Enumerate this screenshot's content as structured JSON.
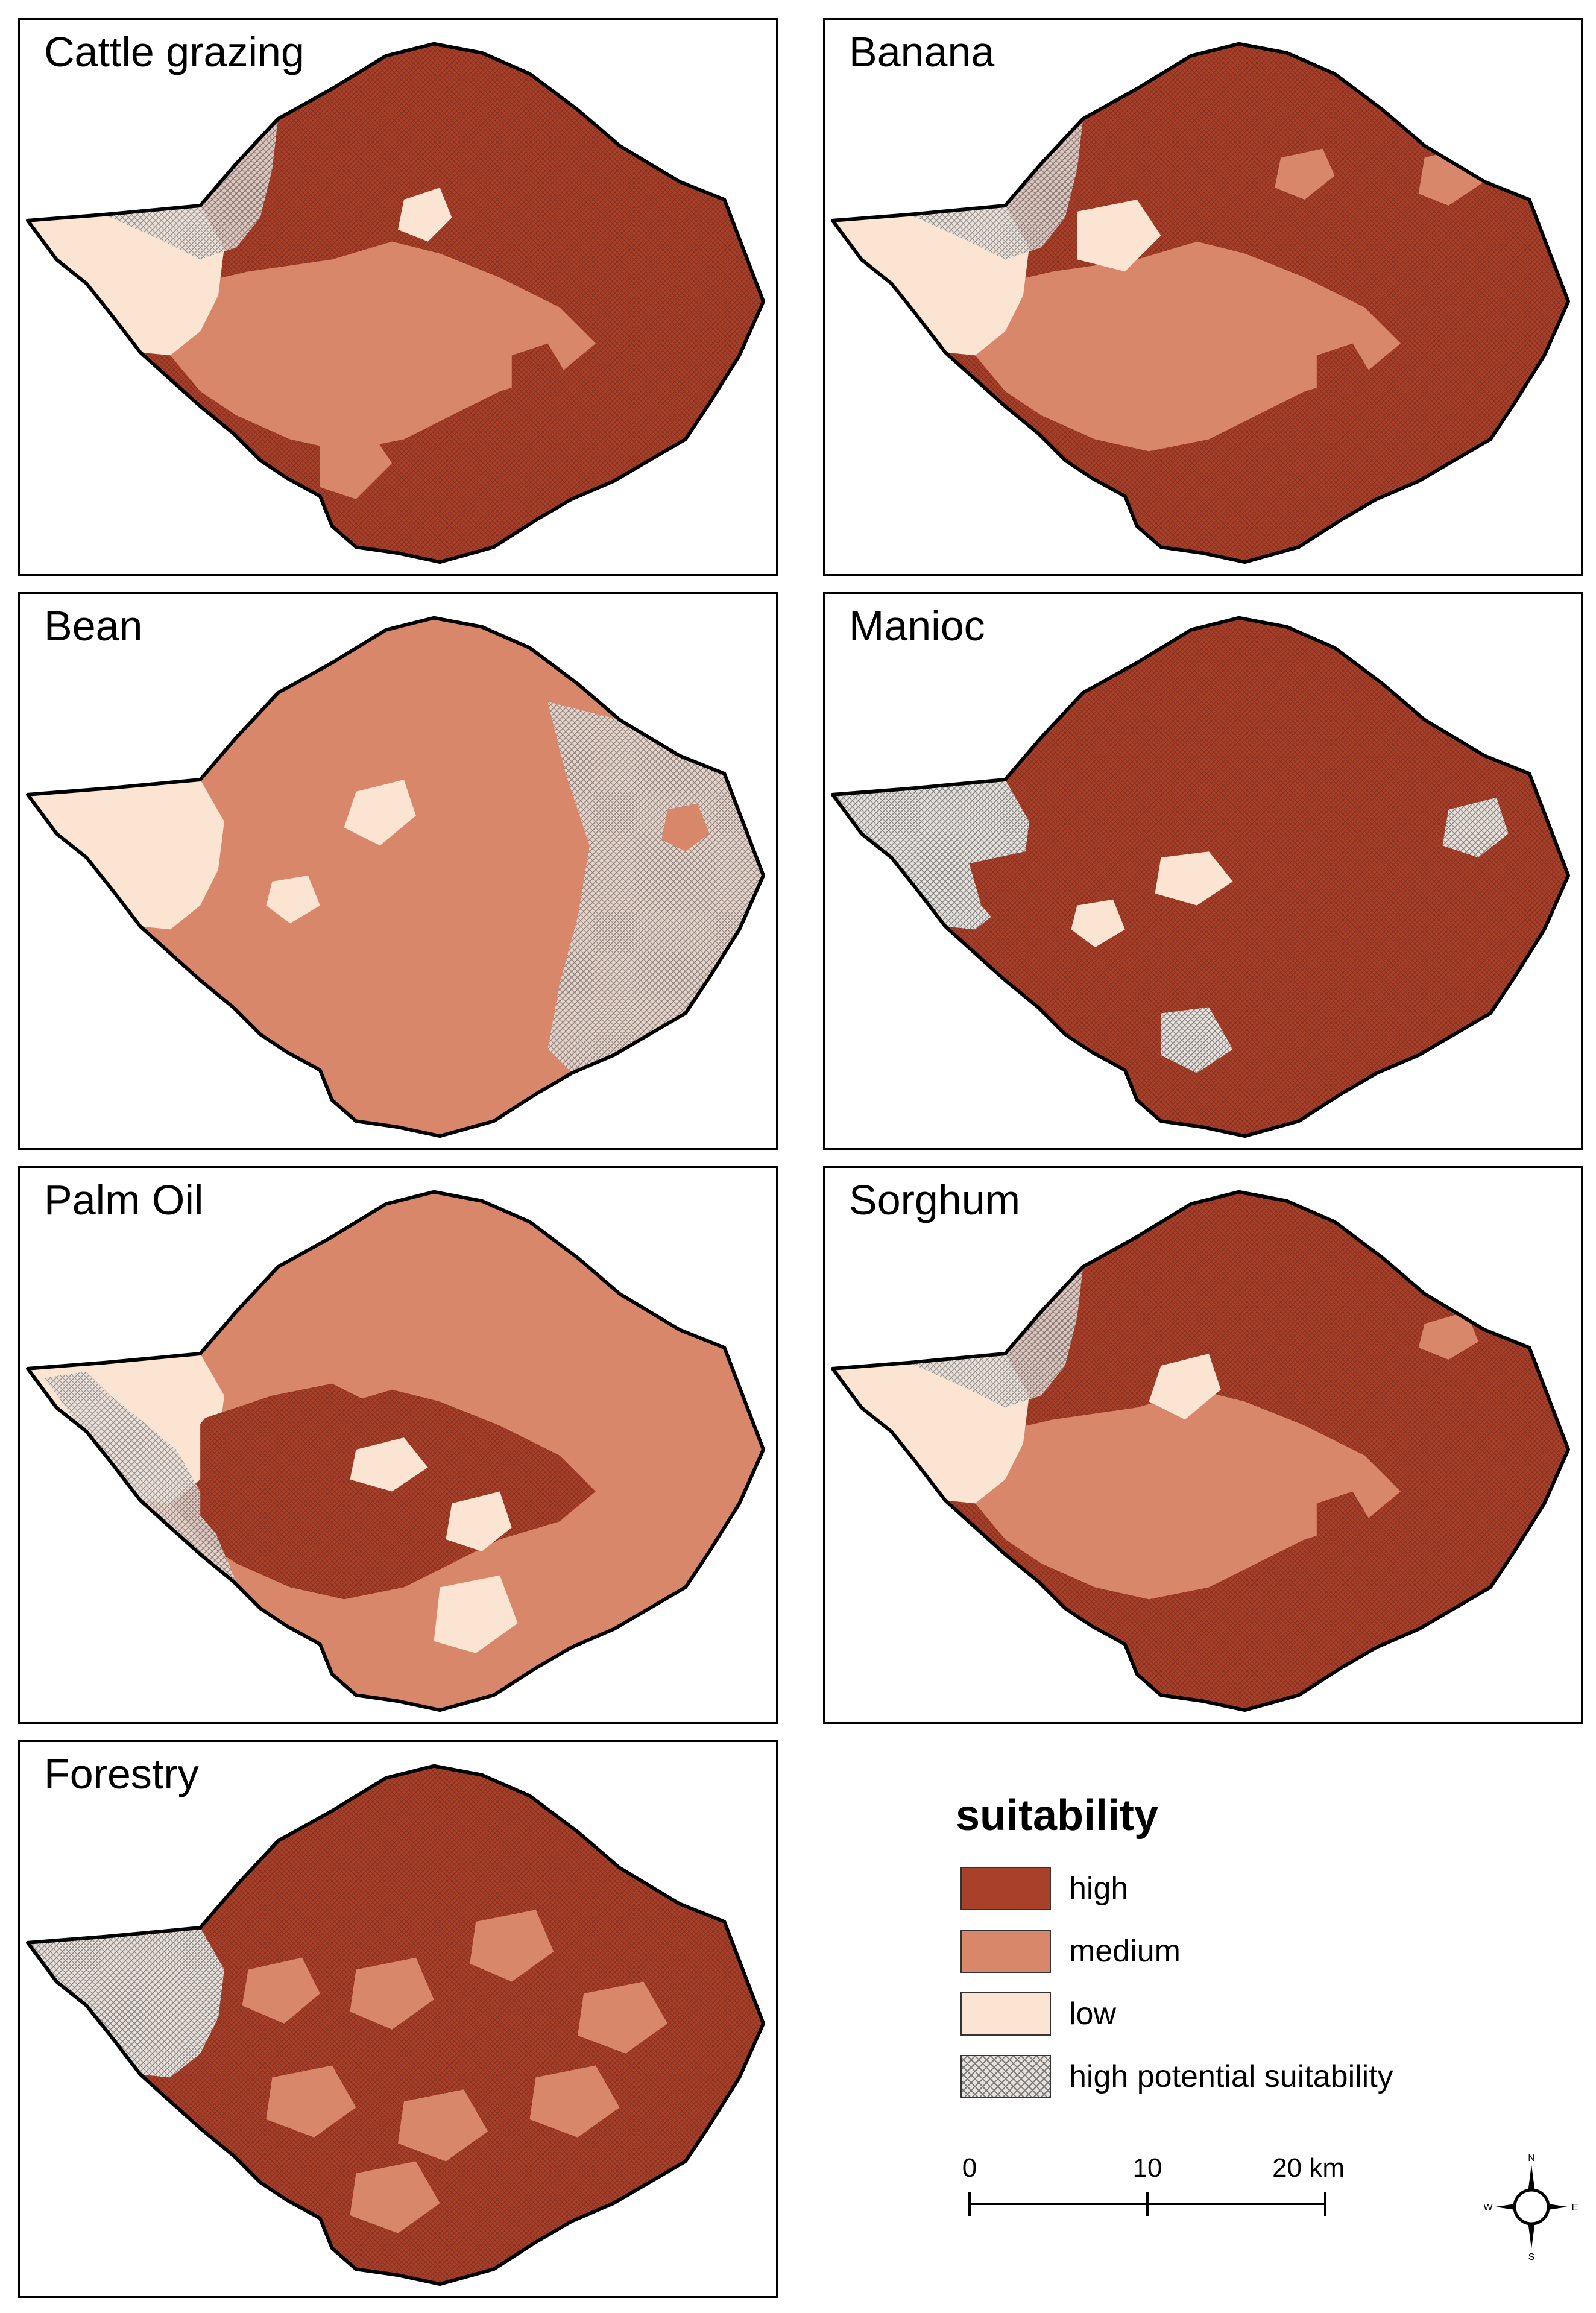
{
  "colors": {
    "high": "#a8402a",
    "medium": "#d9876a",
    "low": "#fbe5d2",
    "potential_bg": "#e8e0da",
    "hatch": "#7a7a7a",
    "outline": "#000000"
  },
  "panels": [
    {
      "id": "cattle",
      "title": "Cattle grazing",
      "base": "high",
      "west": "low",
      "center": "medium",
      "hatch": "northwest",
      "blobs": "cattle"
    },
    {
      "id": "banana",
      "title": "Banana",
      "base": "high",
      "west": "low",
      "center": "medium",
      "hatch": "northwest",
      "blobs": "banana"
    },
    {
      "id": "bean",
      "title": "Bean",
      "base": "medium",
      "west": "low",
      "center": "medium",
      "hatch": "east",
      "blobs": "bean"
    },
    {
      "id": "manioc",
      "title": "Manioc",
      "base": "high",
      "west": "potential",
      "center": "high",
      "hatch": "west",
      "blobs": "manioc"
    },
    {
      "id": "palm",
      "title": "Palm Oil",
      "base": "medium",
      "west": "low",
      "center": "high",
      "hatch": "southwest",
      "blobs": "palm"
    },
    {
      "id": "sorghum",
      "title": "Sorghum",
      "base": "high",
      "west": "low",
      "center": "medium",
      "hatch": "northwest",
      "blobs": "sorghum"
    },
    {
      "id": "forestry",
      "title": "Forestry",
      "base": "high",
      "west": "potential",
      "center": "high",
      "hatch": "west",
      "blobs": "forestry"
    }
  ],
  "legend": {
    "title": "suitability",
    "items": [
      {
        "key": "high",
        "label": "high"
      },
      {
        "key": "medium",
        "label": "medium"
      },
      {
        "key": "low",
        "label": "low"
      },
      {
        "key": "potential",
        "label": "high potential suitability"
      }
    ]
  },
  "scale": {
    "ticks": [
      "0",
      "10",
      "20 km"
    ]
  },
  "compass": {
    "n": "N",
    "e": "E",
    "s": "S",
    "w": "W"
  }
}
